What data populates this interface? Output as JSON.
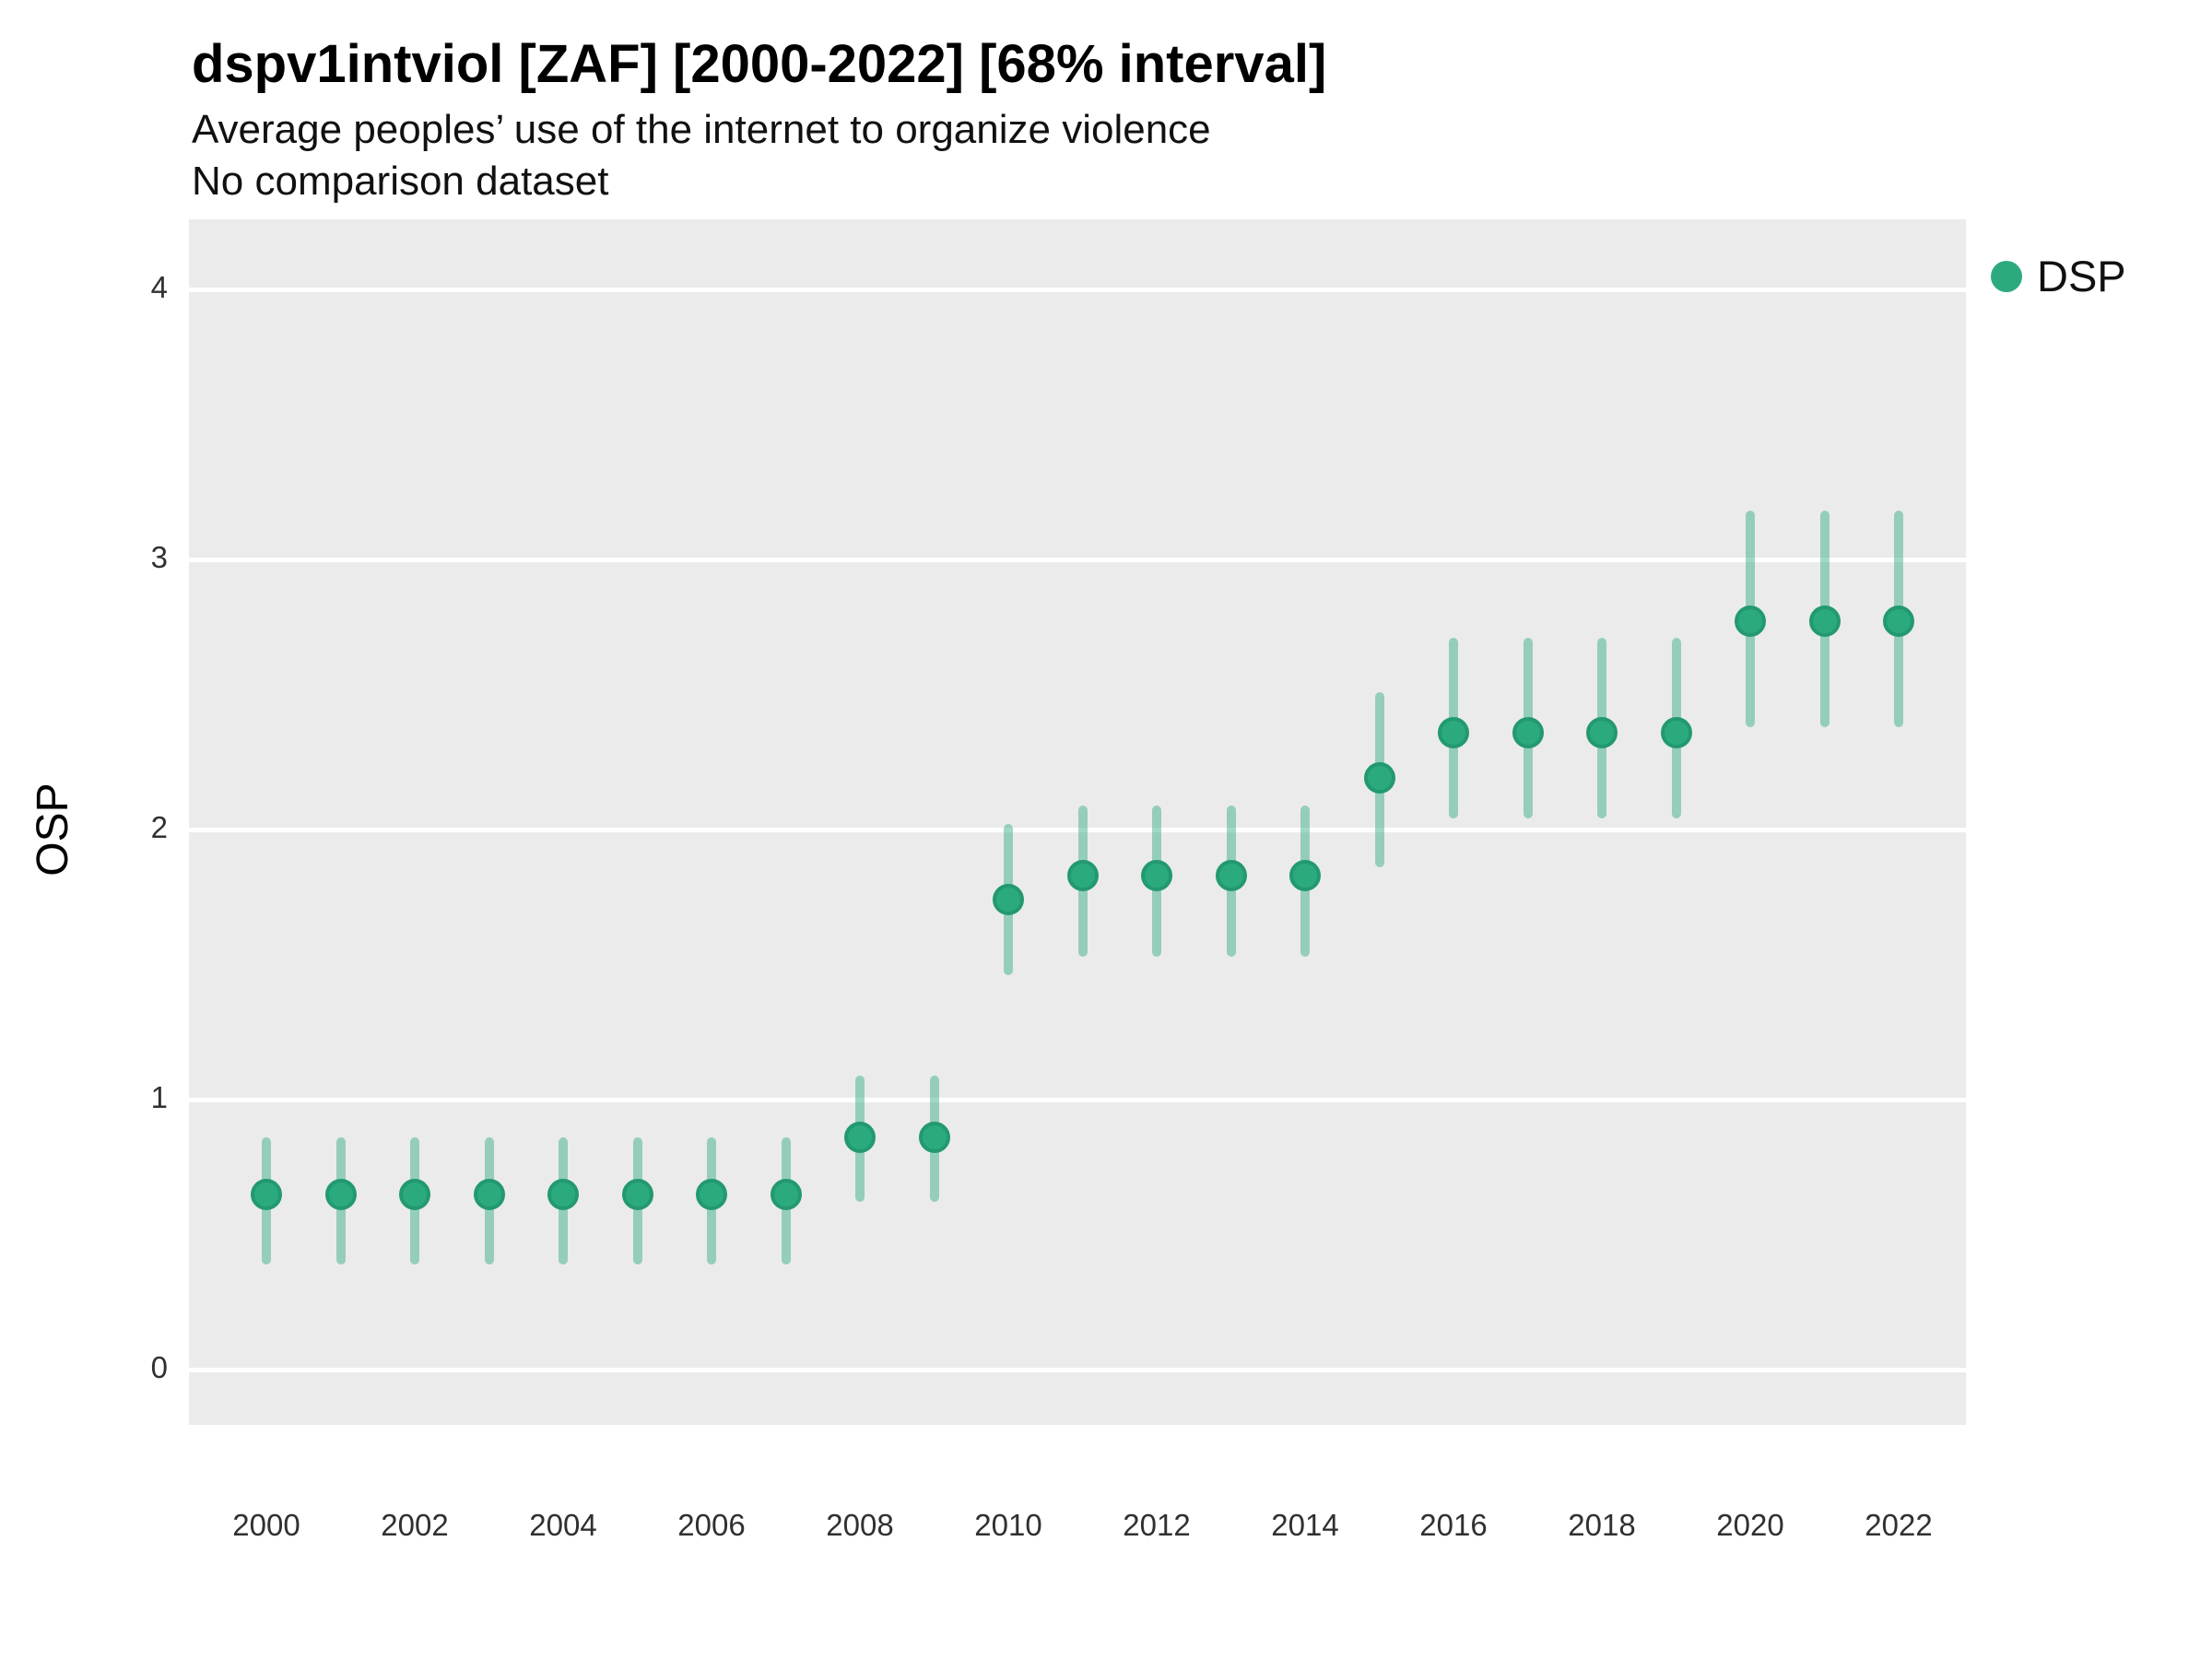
{
  "header": {
    "title": "dspv1intviol [ZAF] [2000-2022] [68% interval]",
    "subtitle": "Average peoples’ use of the internet to organize violence",
    "comparison_note": "No comparison dataset"
  },
  "legend": {
    "label": "DSP"
  },
  "colors": {
    "point": "#2BAA7E",
    "point_stroke": "#23996F",
    "interval_bar": "rgba(43, 170, 126, 0.45)",
    "panel_bg": "#EBEBEB",
    "gridline": "#FFFFFF"
  },
  "chart_data": {
    "type": "scatter",
    "title": "dspv1intviol [ZAF] [2000-2022] [68% interval]",
    "subtitle": "Average peoples’ use of the internet to organize violence",
    "note": "No comparison dataset",
    "xlabel": "",
    "ylabel": "OSP",
    "interval": "68%",
    "ylim": [
      -0.2,
      4.26
    ],
    "xlim": [
      1999,
      2023
    ],
    "grid": "major-horizontal-only",
    "legend_position": "right",
    "y_ticks": [
      4,
      3,
      2,
      1,
      0
    ],
    "x_ticks": [
      2000,
      2002,
      2004,
      2006,
      2008,
      2010,
      2012,
      2014,
      2016,
      2018,
      2020,
      2022
    ],
    "series": [
      {
        "name": "DSP",
        "points": [
          {
            "year": 2000,
            "est": 0.65,
            "lo": 0.39,
            "hi": 0.86
          },
          {
            "year": 2001,
            "est": 0.65,
            "lo": 0.39,
            "hi": 0.86
          },
          {
            "year": 2002,
            "est": 0.65,
            "lo": 0.39,
            "hi": 0.86
          },
          {
            "year": 2003,
            "est": 0.65,
            "lo": 0.39,
            "hi": 0.86
          },
          {
            "year": 2004,
            "est": 0.65,
            "lo": 0.39,
            "hi": 0.86
          },
          {
            "year": 2005,
            "est": 0.65,
            "lo": 0.39,
            "hi": 0.86
          },
          {
            "year": 2006,
            "est": 0.65,
            "lo": 0.39,
            "hi": 0.86
          },
          {
            "year": 2007,
            "est": 0.65,
            "lo": 0.39,
            "hi": 0.86
          },
          {
            "year": 2008,
            "est": 0.86,
            "lo": 0.62,
            "hi": 1.09
          },
          {
            "year": 2009,
            "est": 0.86,
            "lo": 0.62,
            "hi": 1.09
          },
          {
            "year": 2010,
            "est": 1.74,
            "lo": 1.46,
            "hi": 2.02
          },
          {
            "year": 2011,
            "est": 1.83,
            "lo": 1.53,
            "hi": 2.09
          },
          {
            "year": 2012,
            "est": 1.83,
            "lo": 1.53,
            "hi": 2.09
          },
          {
            "year": 2013,
            "est": 1.83,
            "lo": 1.53,
            "hi": 2.09
          },
          {
            "year": 2014,
            "est": 1.83,
            "lo": 1.53,
            "hi": 2.09
          },
          {
            "year": 2015,
            "est": 2.19,
            "lo": 1.86,
            "hi": 2.51
          },
          {
            "year": 2016,
            "est": 2.36,
            "lo": 2.04,
            "hi": 2.71
          },
          {
            "year": 2017,
            "est": 2.36,
            "lo": 2.04,
            "hi": 2.71
          },
          {
            "year": 2018,
            "est": 2.36,
            "lo": 2.04,
            "hi": 2.71
          },
          {
            "year": 2019,
            "est": 2.36,
            "lo": 2.04,
            "hi": 2.71
          },
          {
            "year": 2020,
            "est": 2.77,
            "lo": 2.38,
            "hi": 3.18
          },
          {
            "year": 2021,
            "est": 2.77,
            "lo": 2.38,
            "hi": 3.18
          },
          {
            "year": 2022,
            "est": 2.77,
            "lo": 2.38,
            "hi": 3.18
          }
        ]
      }
    ]
  }
}
